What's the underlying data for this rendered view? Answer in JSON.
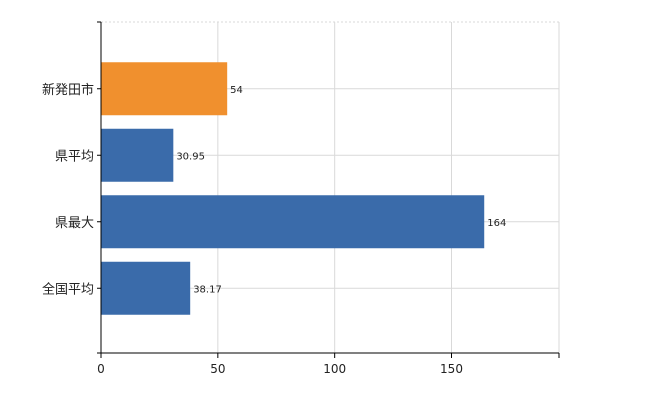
{
  "chart_data": {
    "type": "bar",
    "orientation": "horizontal",
    "categories": [
      "新発田市",
      "県平均",
      "県最大",
      "全国平均"
    ],
    "values": [
      54,
      30.95,
      164,
      38.17
    ],
    "value_labels": [
      "54",
      "30.95",
      "164",
      "38.17"
    ],
    "bar_colors": [
      "#F0902E",
      "#3A6BAA",
      "#3A6BAA",
      "#3A6BAA"
    ],
    "xlim": [
      0,
      196
    ],
    "x_ticks": [
      0,
      50,
      100,
      150
    ],
    "x_tick_labels": [
      "0",
      "50",
      "100",
      "150"
    ],
    "grid": true,
    "legend": "none",
    "title": "",
    "xlabel": "",
    "ylabel": ""
  }
}
